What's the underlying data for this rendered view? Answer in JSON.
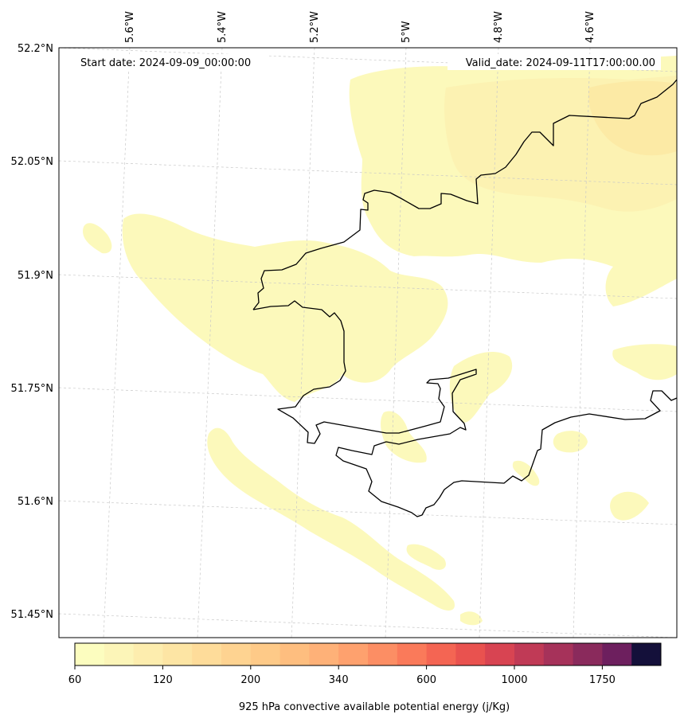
{
  "map": {
    "start_label": "Start date: 2024-09-09_00:00:00",
    "valid_label": "Valid_date: 2024-09-11T17:00:00.00",
    "lon_labels": [
      "5.6°W",
      "5.4°W",
      "5.2°W",
      "5°W",
      "4.8°W",
      "4.6°W"
    ],
    "lat_labels": [
      "52.2°N",
      "52.05°N",
      "51.9°N",
      "51.75°N",
      "51.6°N",
      "51.45°N"
    ],
    "coastline_color": "#000000",
    "gridline_color": "#c8c8c8",
    "field_colors": [
      "#fcf9bb",
      "#fcf2b2",
      "#fceaa5"
    ]
  },
  "colorbar": {
    "label": "925 hPa convective available potential energy (j/Kg)",
    "tick_labels": [
      "60",
      "120",
      "200",
      "340",
      "600",
      "1000",
      "1750"
    ],
    "colors": [
      "#fcfdbf",
      "#fcf5b8",
      "#fdedae",
      "#fde5a4",
      "#fedc9a",
      "#fed391",
      "#feca88",
      "#febe7f",
      "#feb178",
      "#fea16e",
      "#fc8e64",
      "#fa7a5a",
      "#f46553",
      "#e9524f",
      "#d84452",
      "#c03a56",
      "#a6325a",
      "#8a2a5c",
      "#6d1f5e",
      "#14103a"
    ]
  }
}
